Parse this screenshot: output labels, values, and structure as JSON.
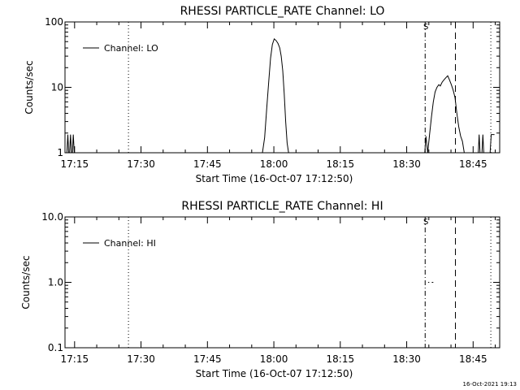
{
  "footer_timestamp": "16-Oct-2021 19:13",
  "chart_data": [
    {
      "type": "line",
      "title": "RHESSI PARTICLE_RATE Channel: LO",
      "xlabel": "Start Time (16-Oct-07 17:12:50)",
      "ylabel": "Counts/sec",
      "y_scale": "log",
      "ylim": [
        1,
        100
      ],
      "yticks": [
        {
          "v": 1,
          "label": "1"
        },
        {
          "v": 10,
          "label": "10"
        },
        {
          "v": 100,
          "label": "100"
        }
      ],
      "xlim": [
        "17:12:50",
        "18:51:00"
      ],
      "xticks": [
        "17:15",
        "17:30",
        "17:45",
        "18:00",
        "18:15",
        "18:30",
        "18:45"
      ],
      "legend": {
        "label": "Channel: LO",
        "position": "top-left"
      },
      "marker_label": "S",
      "marker_label_time": "18:34:20",
      "vlines": [
        {
          "time": "17:27:10",
          "style": "dotted"
        },
        {
          "time": "18:34:10",
          "style": "dashdot"
        },
        {
          "time": "18:41:00",
          "style": "dashed"
        },
        {
          "time": "18:49:00",
          "style": "dotted"
        }
      ],
      "series": [
        {
          "segments": [
            [
              [
                "17:13:15",
                1
              ],
              [
                "17:13:28",
                1.9
              ],
              [
                "17:13:40",
                1
              ],
              [
                "17:13:53",
                1
              ],
              [
                "17:14:05",
                1.9
              ],
              [
                "17:14:18",
                1
              ],
              [
                "17:14:30",
                1
              ],
              [
                "17:14:42",
                1.9
              ],
              [
                "17:14:55",
                1
              ]
            ],
            [
              [
                "17:57:25",
                1
              ],
              [
                "17:57:55",
                1.7
              ],
              [
                "17:58:25",
                5
              ],
              [
                "17:58:50",
                12
              ],
              [
                "17:59:15",
                28
              ],
              [
                "17:59:40",
                45
              ],
              [
                "18:00:05",
                55
              ],
              [
                "18:00:30",
                52
              ],
              [
                "18:00:55",
                47
              ],
              [
                "18:01:20",
                40
              ],
              [
                "18:01:40",
                30
              ],
              [
                "18:02:00",
                18
              ],
              [
                "18:02:20",
                8
              ],
              [
                "18:02:40",
                3
              ],
              [
                "18:03:00",
                1.4
              ],
              [
                "18:03:20",
                1
              ]
            ],
            [
              [
                "18:34:05",
                1
              ],
              [
                "18:34:20",
                1.8
              ],
              [
                "18:34:45",
                1
              ],
              [
                "18:35:10",
                1.9
              ],
              [
                "18:35:35",
                3.5
              ],
              [
                "18:36:00",
                6
              ],
              [
                "18:36:25",
                8.5
              ],
              [
                "18:36:50",
                10
              ],
              [
                "18:37:15",
                11
              ],
              [
                "18:37:35",
                10.5
              ],
              [
                "18:38:00",
                12
              ],
              [
                "18:38:25",
                13
              ],
              [
                "18:38:50",
                14
              ],
              [
                "18:39:15",
                15
              ],
              [
                "18:39:40",
                13
              ],
              [
                "18:40:05",
                11
              ],
              [
                "18:40:30",
                9
              ],
              [
                "18:40:55",
                7
              ],
              [
                "18:41:20",
                4
              ],
              [
                "18:41:45",
                2.5
              ],
              [
                "18:42:10",
                1.8
              ],
              [
                "18:42:35",
                1.5
              ],
              [
                "18:43:00",
                1
              ]
            ],
            [
              [
                "18:46:10",
                1
              ],
              [
                "18:46:22",
                1.9
              ],
              [
                "18:46:34",
                1
              ],
              [
                "18:47:00",
                1
              ],
              [
                "18:47:12",
                1.9
              ],
              [
                "18:47:24",
                1
              ]
            ],
            [
              [
                "18:48:50",
                1
              ],
              [
                "18:49:05",
                1.9
              ],
              [
                "18:49:50",
                1.9
              ]
            ]
          ]
        }
      ]
    },
    {
      "type": "line",
      "title": "RHESSI PARTICLE_RATE Channel: HI",
      "xlabel": "Start Time (16-Oct-07 17:12:50)",
      "ylabel": "Counts/sec",
      "y_scale": "log",
      "ylim": [
        0.1,
        10
      ],
      "yticks": [
        {
          "v": 0.1,
          "label": "0.1"
        },
        {
          "v": 1,
          "label": "1.0"
        },
        {
          "v": 10,
          "label": "10.0"
        }
      ],
      "xlim": [
        "17:12:50",
        "18:51:00"
      ],
      "xticks": [
        "17:15",
        "17:30",
        "17:45",
        "18:00",
        "18:15",
        "18:30",
        "18:45"
      ],
      "legend": {
        "label": "Channel: HI",
        "position": "top-left"
      },
      "marker_label": "S",
      "marker_label_time": "18:34:20",
      "vlines": [
        {
          "time": "17:27:10",
          "style": "dotted"
        },
        {
          "time": "18:34:10",
          "style": "dashdot"
        },
        {
          "time": "18:41:00",
          "style": "dashed"
        },
        {
          "time": "18:49:00",
          "style": "dotted"
        }
      ],
      "series": [
        {
          "segments": [
            [
              [
                "18:34:50",
                1
              ],
              [
                "18:35:05",
                1
              ]
            ],
            [
              [
                "18:35:40",
                1
              ],
              [
                "18:36:00",
                1
              ]
            ]
          ]
        }
      ]
    }
  ]
}
